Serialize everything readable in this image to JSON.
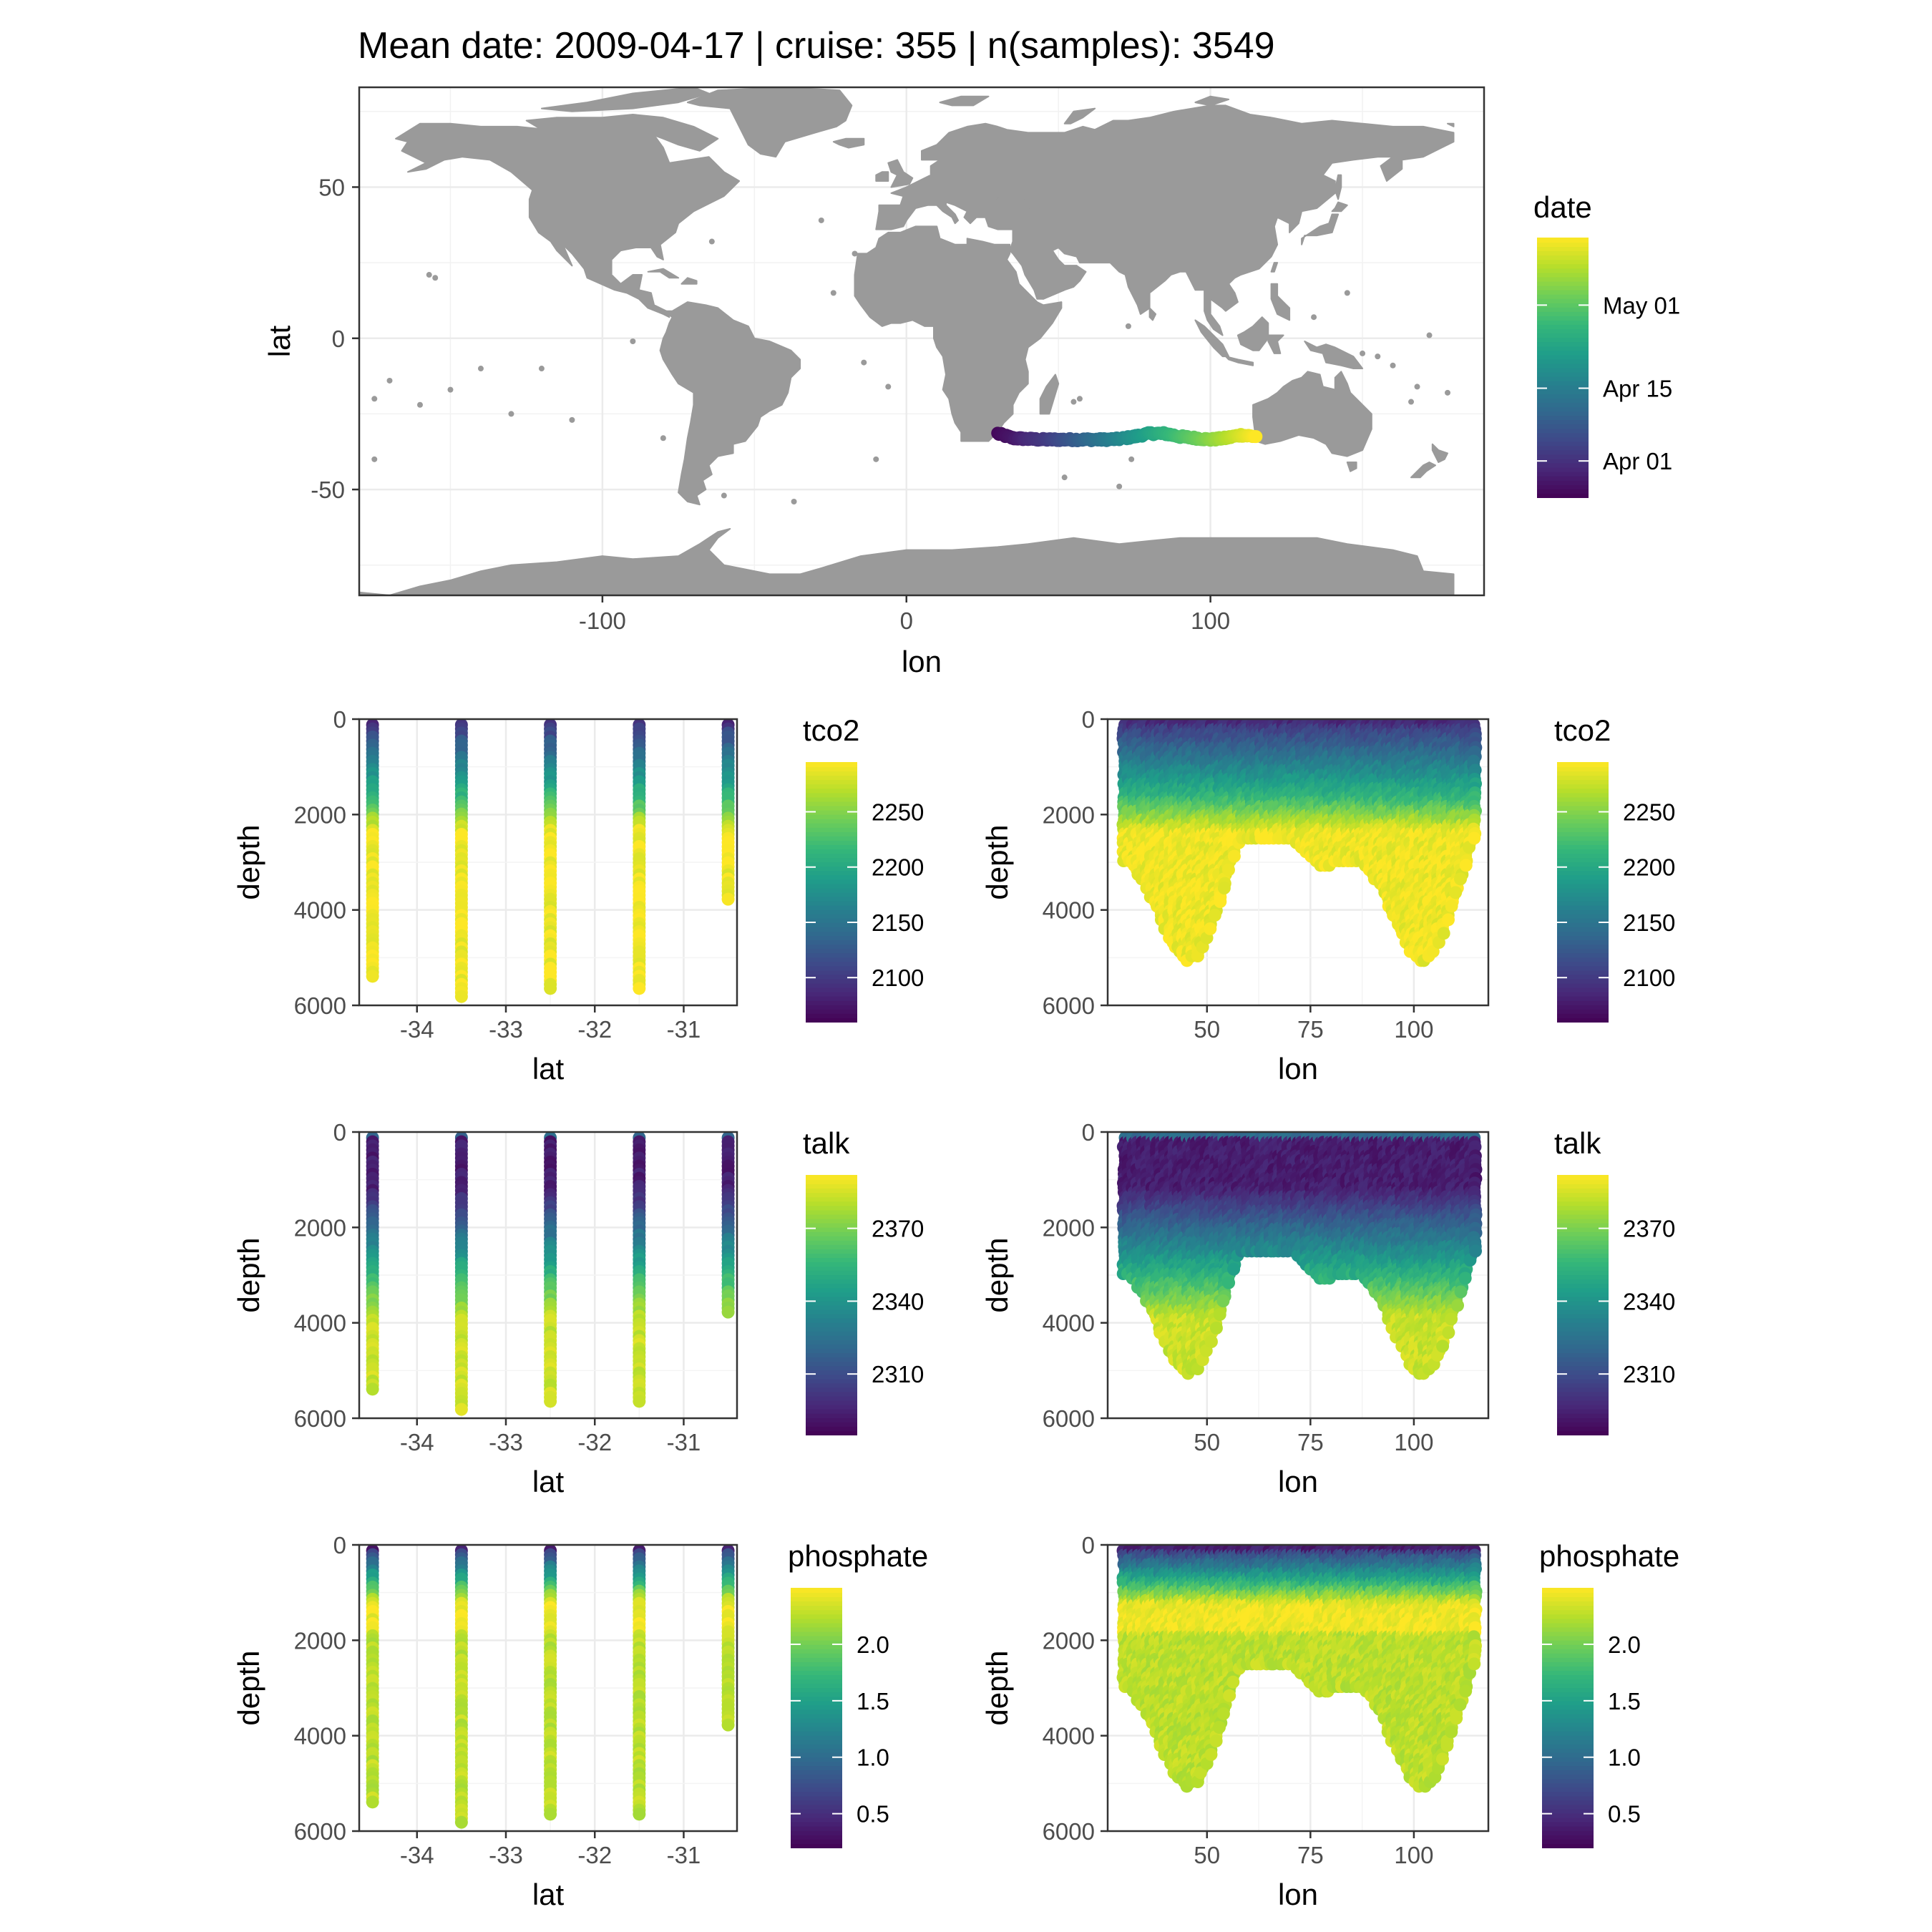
{
  "title": "Mean date: 2009-04-17 | cruise: 355 | n(samples): 3549",
  "colors": {
    "land": "#9a9a9a",
    "grid": "#ebebeb",
    "panel_border": "#333333",
    "tick_text": "#4d4d4d",
    "viridis": [
      "#440154",
      "#482878",
      "#3e4989",
      "#31688e",
      "#26828e",
      "#1f9e89",
      "#35b779",
      "#6ece58",
      "#b5de2b",
      "#fde725"
    ]
  },
  "map": {
    "chart_data": {
      "type": "scatter",
      "xlabel": "lon",
      "ylabel": "lat",
      "xlim": [
        -180,
        190
      ],
      "ylim": [
        -85,
        83
      ],
      "x_ticks": [
        -100,
        0,
        100
      ],
      "y_ticks": [
        -50,
        0,
        50
      ],
      "x_tick_labels": [
        "-100",
        "0",
        "100"
      ],
      "y_tick_labels": [
        "-50",
        "0",
        "50"
      ],
      "grid": true,
      "legend": {
        "title": "date",
        "type": "colorbar",
        "placement": "right",
        "labels": [
          "May 01",
          "Apr 15",
          "Apr 01"
        ],
        "label_dates": [
          "2009-05-01",
          "2009-04-15",
          "2009-04-01"
        ],
        "range": [
          "2009-03-25",
          "2009-05-14"
        ]
      },
      "track": {
        "lon": [
          30,
          35,
          40,
          45,
          50,
          55,
          60,
          65,
          70,
          75,
          80,
          85,
          90,
          95,
          100,
          105,
          110,
          115
        ],
        "lat": [
          -31.5,
          -33,
          -33.3,
          -33.5,
          -33.5,
          -33.5,
          -33.5,
          -33.5,
          -33.3,
          -32.5,
          -31.5,
          -31.5,
          -32.5,
          -33,
          -33.5,
          -33,
          -32,
          -32.5
        ],
        "date": [
          "2009-03-26",
          "2009-03-28",
          "2009-03-31",
          "2009-04-02",
          "2009-04-05",
          "2009-04-08",
          "2009-04-11",
          "2009-04-14",
          "2009-04-17",
          "2009-04-20",
          "2009-04-23",
          "2009-04-26",
          "2009-04-29",
          "2009-05-02",
          "2009-05-05",
          "2009-05-08",
          "2009-05-11",
          "2009-05-14"
        ]
      }
    }
  },
  "panels": [
    {
      "variable": "tco2",
      "legend_title": "tco2",
      "legend_labels": [
        "2250",
        "2200",
        "2150",
        "2100"
      ],
      "legend_values": [
        2250,
        2200,
        2150,
        2100
      ],
      "value_range": [
        2060,
        2295
      ],
      "lat_chart": {
        "type": "scatter",
        "xlabel": "lat",
        "ylabel": "depth",
        "xlim": [
          -34.65,
          -30.4
        ],
        "ylim": [
          6000,
          0
        ],
        "x_tick_labels": [
          "-34",
          "-33",
          "-32",
          "-31"
        ],
        "y_tick_labels": [
          "0",
          "2000",
          "4000",
          "6000"
        ],
        "stations": [
          {
            "lat": -34.5,
            "max_depth": 5450
          },
          {
            "lat": -33.5,
            "max_depth": 5850
          },
          {
            "lat": -32.5,
            "max_depth": 5700
          },
          {
            "lat": -31.5,
            "max_depth": 5700
          },
          {
            "lat": -30.5,
            "max_depth": 3850
          }
        ]
      },
      "lon_chart": {
        "type": "scatter",
        "xlabel": "lon",
        "ylabel": "depth",
        "xlim": [
          26,
          118
        ],
        "ylim": [
          6000,
          0
        ],
        "x_tick_labels": [
          "50",
          "75",
          "100"
        ],
        "y_tick_labels": [
          "0",
          "2000",
          "4000",
          "6000"
        ]
      }
    },
    {
      "variable": "talk",
      "legend_title": "talk",
      "legend_labels": [
        "2370",
        "2340",
        "2310"
      ],
      "legend_values": [
        2370,
        2340,
        2310
      ],
      "value_range": [
        2285,
        2392
      ],
      "lat_chart": {
        "type": "scatter",
        "xlabel": "lat",
        "ylabel": "depth",
        "xlim": [
          -34.65,
          -30.4
        ],
        "ylim": [
          6000,
          0
        ],
        "x_tick_labels": [
          "-34",
          "-33",
          "-32",
          "-31"
        ],
        "y_tick_labels": [
          "0",
          "2000",
          "4000",
          "6000"
        ],
        "stations": [
          {
            "lat": -34.5,
            "max_depth": 5450
          },
          {
            "lat": -33.5,
            "max_depth": 5850
          },
          {
            "lat": -32.5,
            "max_depth": 5700
          },
          {
            "lat": -31.5,
            "max_depth": 5700
          },
          {
            "lat": -30.5,
            "max_depth": 3850
          }
        ]
      },
      "lon_chart": {
        "type": "scatter",
        "xlabel": "lon",
        "ylabel": "depth",
        "xlim": [
          26,
          118
        ],
        "ylim": [
          6000,
          0
        ],
        "x_tick_labels": [
          "50",
          "75",
          "100"
        ],
        "y_tick_labels": [
          "0",
          "2000",
          "4000",
          "6000"
        ]
      }
    },
    {
      "variable": "phosphate",
      "legend_title": "phosphate",
      "legend_labels": [
        "2.0",
        "1.5",
        "1.0",
        "0.5"
      ],
      "legend_values": [
        2.0,
        1.5,
        1.0,
        0.5
      ],
      "value_range": [
        0.2,
        2.5
      ],
      "lat_chart": {
        "type": "scatter",
        "xlabel": "lat",
        "ylabel": "depth",
        "xlim": [
          -34.65,
          -30.4
        ],
        "ylim": [
          6000,
          0
        ],
        "x_tick_labels": [
          "-34",
          "-33",
          "-32",
          "-31"
        ],
        "y_tick_labels": [
          "0",
          "2000",
          "4000",
          "6000"
        ],
        "stations": [
          {
            "lat": -34.5,
            "max_depth": 5450
          },
          {
            "lat": -33.5,
            "max_depth": 5850
          },
          {
            "lat": -32.5,
            "max_depth": 5700
          },
          {
            "lat": -31.5,
            "max_depth": 5700
          },
          {
            "lat": -30.5,
            "max_depth": 3850
          }
        ]
      },
      "lon_chart": {
        "type": "scatter",
        "xlabel": "lon",
        "ylabel": "depth",
        "xlim": [
          26,
          118
        ],
        "ylim": [
          6000,
          0
        ],
        "x_tick_labels": [
          "50",
          "75",
          "100"
        ],
        "y_tick_labels": [
          "0",
          "2000",
          "4000",
          "6000"
        ]
      }
    }
  ]
}
